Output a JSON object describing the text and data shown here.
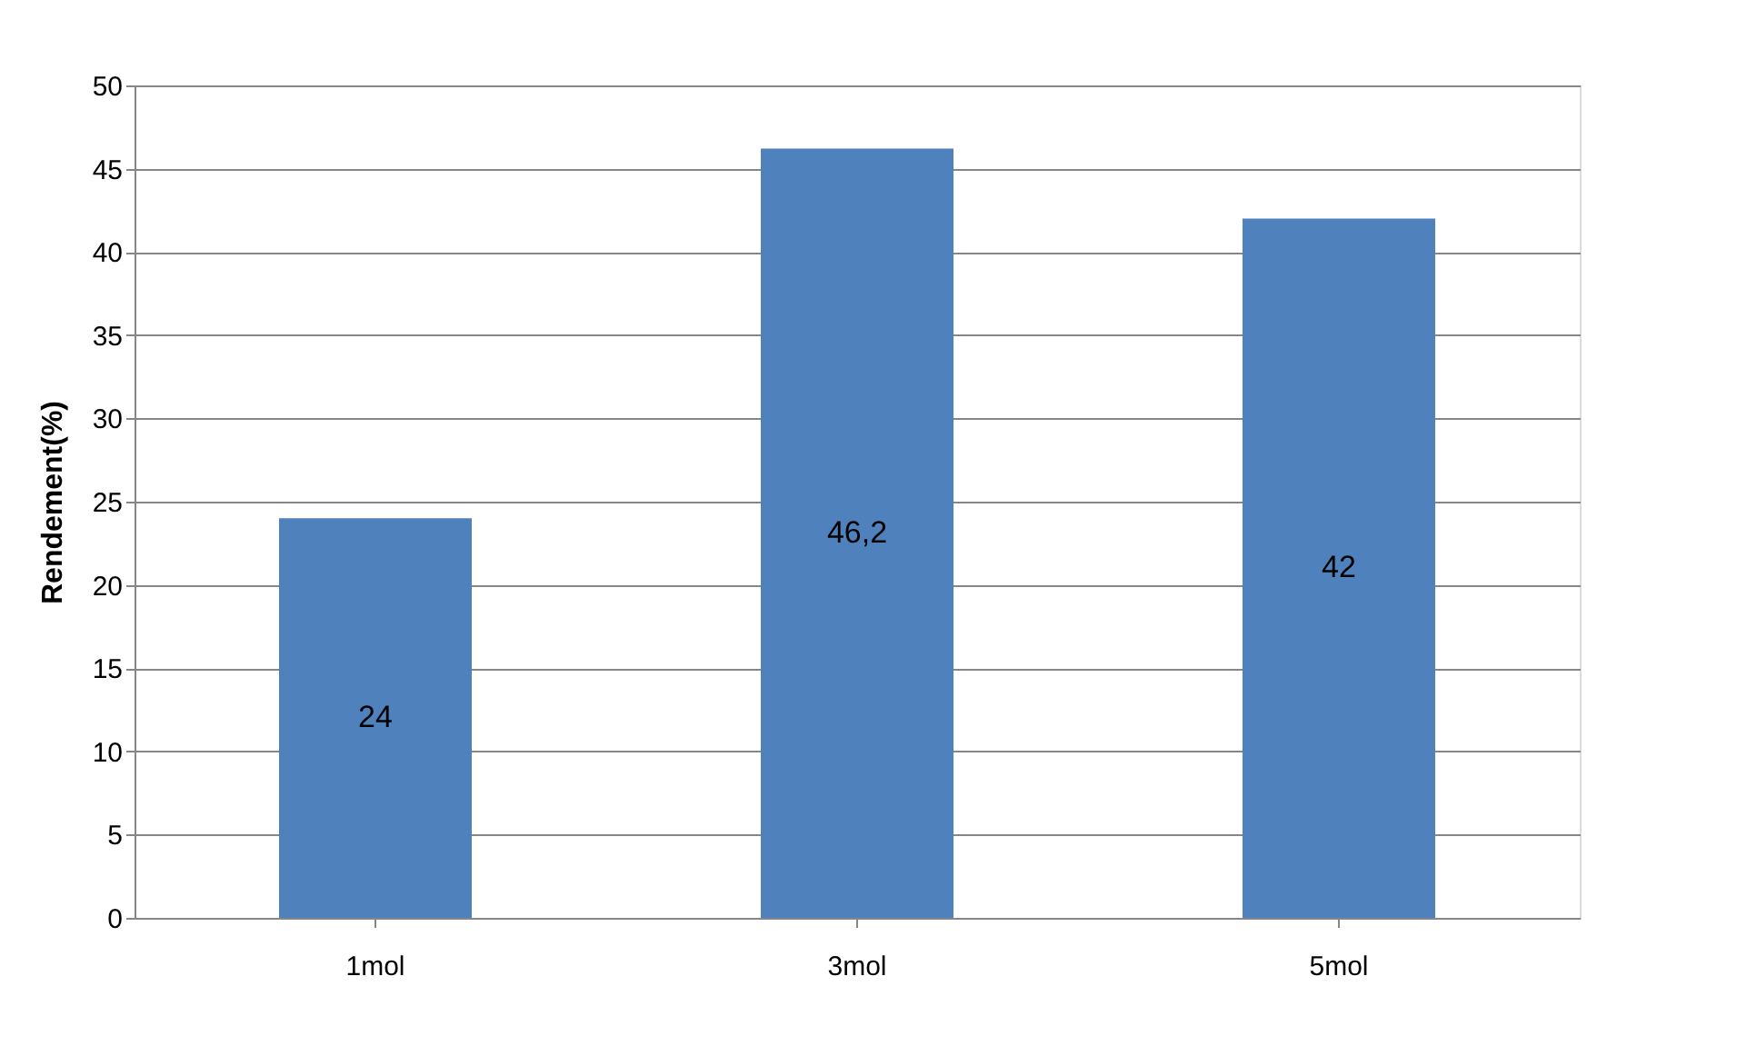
{
  "chart_data": {
    "type": "bar",
    "ylabel": "Rendement(%)",
    "categories": [
      "1mol",
      "3mol",
      "5mol"
    ],
    "values": [
      24,
      46.2,
      42
    ],
    "value_labels": [
      "24",
      "46,2",
      "42"
    ],
    "color": "#4f81bd",
    "ylim": [
      0,
      50
    ],
    "yticks": [
      0,
      5,
      10,
      15,
      20,
      25,
      30,
      35,
      40,
      45,
      50
    ],
    "grid": "y"
  }
}
